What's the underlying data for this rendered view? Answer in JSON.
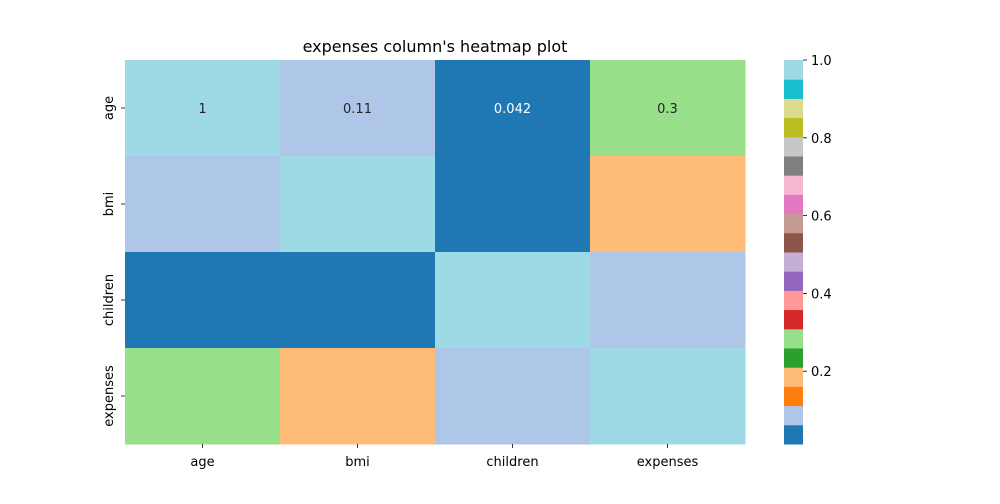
{
  "chart_data": {
    "type": "heatmap",
    "title": "expenses column's heatmap plot",
    "x_categories": [
      "age",
      "bmi",
      "children",
      "expenses"
    ],
    "y_categories": [
      "age",
      "bmi",
      "children",
      "expenses"
    ],
    "values": [
      [
        1.0,
        0.11,
        0.042,
        0.3
      ],
      [
        0.11,
        1.0,
        0.013,
        0.2
      ],
      [
        0.042,
        0.013,
        1.0,
        0.068
      ],
      [
        0.3,
        0.2,
        0.068,
        1.0
      ]
    ],
    "annotated_row": 0,
    "cell_labels": [
      [
        "1",
        "0.11",
        "0.042",
        "0.3"
      ],
      [
        "",
        "",
        "",
        ""
      ],
      [
        "",
        "",
        "",
        ""
      ],
      [
        "",
        "",
        "",
        ""
      ]
    ],
    "colormap": "tab20",
    "colormap_colors": [
      "#1f77b4",
      "#aec7e8",
      "#ff7f0e",
      "#ffbb78",
      "#2ca02c",
      "#98df8a",
      "#d62728",
      "#ff9896",
      "#9467bd",
      "#c5b0d5",
      "#8c564b",
      "#c49c94",
      "#e377c2",
      "#f7b6d2",
      "#7f7f7f",
      "#c7c7c7",
      "#bcbd22",
      "#dbdb8d",
      "#17becf",
      "#9edae5"
    ],
    "color_range": [
      0.013,
      1.0
    ],
    "colorbar": {
      "position": "right",
      "ticks": [
        0.2,
        0.4,
        0.6,
        0.8,
        1.0
      ],
      "tick_labels": [
        "0.2",
        "0.4",
        "0.6",
        "0.8",
        "1.0"
      ]
    },
    "grid": false
  }
}
